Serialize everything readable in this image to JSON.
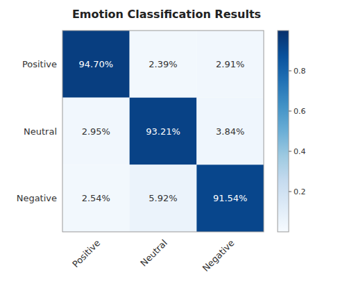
{
  "chart_data": {
    "type": "heatmap",
    "title": "Emotion Classification Results",
    "categories": [
      "Positive",
      "Neutral",
      "Negative"
    ],
    "values": [
      [
        0.947,
        0.0239,
        0.0291
      ],
      [
        0.0295,
        0.9321,
        0.0384
      ],
      [
        0.0254,
        0.0592,
        0.9154
      ]
    ],
    "value_labels": [
      [
        "94.70%",
        "2.39%",
        "2.91%"
      ],
      [
        "2.95%",
        "93.21%",
        "3.84%"
      ],
      [
        "2.54%",
        "5.92%",
        "91.54%"
      ]
    ],
    "data_labels": true,
    "colorbar_range": [
      0.0,
      1.0
    ],
    "colorbar_ticks": [
      0.2,
      0.4,
      0.6,
      0.8
    ]
  }
}
